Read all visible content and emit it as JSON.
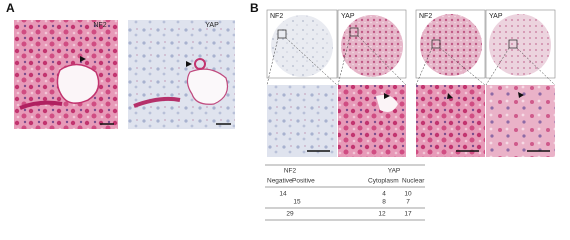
{
  "panels": [
    {
      "label": "A",
      "images": [
        "NF2",
        "YAP"
      ]
    },
    {
      "label": "B",
      "images": [
        "NF2",
        "YAP",
        "NF2",
        "YAP"
      ]
    }
  ],
  "table": {
    "header": [
      "NF2",
      "YAP"
    ],
    "subheader": [
      "Negative",
      "Positive",
      "Cytoplasm",
      "Nuclear"
    ],
    "rows": [
      [
        14,
        null,
        4,
        10
      ],
      [
        null,
        15,
        8,
        7
      ]
    ],
    "total": [
      29,
      12,
      17
    ]
  }
}
